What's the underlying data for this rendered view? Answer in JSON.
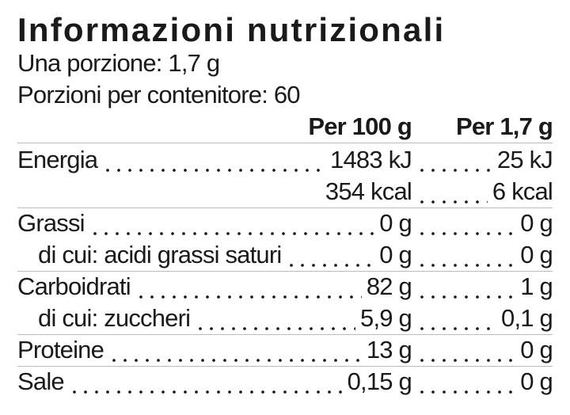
{
  "title": "Informazioni nutrizionali",
  "serving_size": "Una porzione: 1,7 g",
  "servings_per_container": "Porzioni per contenitore: 60",
  "header": {
    "per_100g": "Per 100 g",
    "per_serving": "Per 1,7 g"
  },
  "rows": [
    {
      "name": "Energia",
      "per_100g": "1483 kJ",
      "per_serving": "25 kJ"
    },
    {
      "per_100g": "354 kcal",
      "per_serving": "6 kcal"
    },
    {
      "name": "Grassi",
      "per_100g": "0 g",
      "per_serving": "0 g"
    },
    {
      "name": "di cui: acidi grassi saturi",
      "indent": true,
      "per_100g": "0 g",
      "per_serving": "0 g"
    },
    {
      "name": "Carboidrati",
      "per_100g": "82 g",
      "per_serving": "1 g"
    },
    {
      "name": "di cui: zuccheri",
      "indent": true,
      "per_100g": "5,9 g",
      "per_serving": "0,1 g"
    },
    {
      "name": "Proteine",
      "per_100g": "13 g",
      "per_serving": "0 g"
    },
    {
      "name": "Sale",
      "per_100g": "0,15 g",
      "per_serving": "0 g"
    }
  ]
}
